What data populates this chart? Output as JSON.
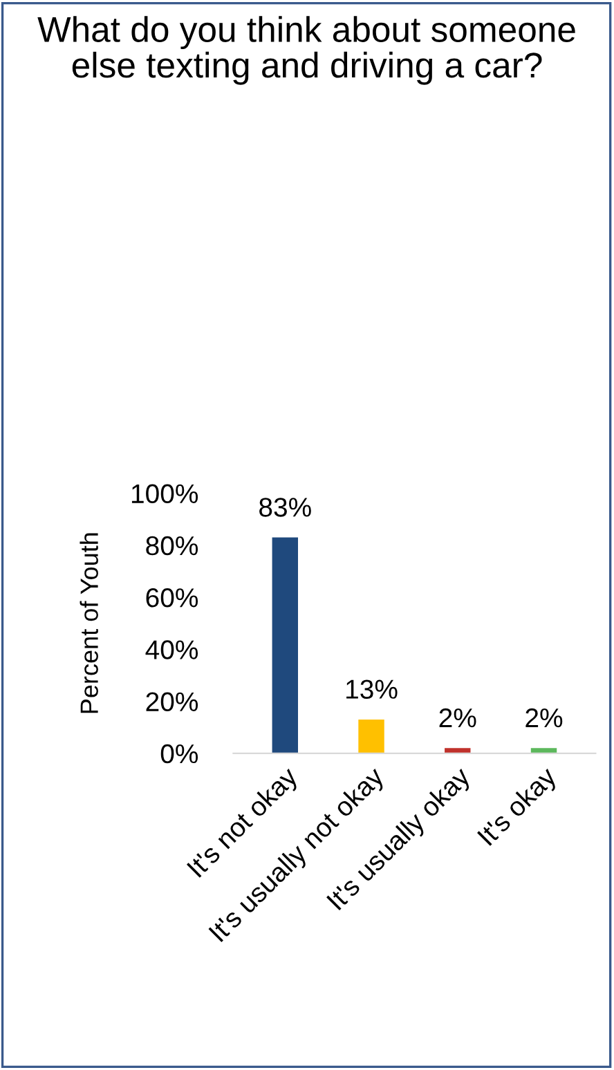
{
  "chart_data": {
    "type": "bar",
    "title": "What do you think about someone else texting and driving a car?",
    "ylabel": "Percent of Youth",
    "categories": [
      "It's not okay",
      "It's usually not okay",
      "It's usually okay",
      "It's okay"
    ],
    "values": [
      83,
      13,
      2,
      2
    ],
    "colors": [
      "#1f497d",
      "#ffc000",
      "#c0312b",
      "#5cb85c"
    ],
    "value_labels": [
      "83%",
      "13%",
      "2%",
      "2%"
    ],
    "ylim": [
      0,
      100
    ],
    "yticks": [
      {
        "value": 0,
        "label": "0%"
      },
      {
        "value": 20,
        "label": "20%"
      },
      {
        "value": 40,
        "label": "40%"
      },
      {
        "value": 60,
        "label": "60%"
      },
      {
        "value": 80,
        "label": "80%"
      },
      {
        "value": 100,
        "label": "100%"
      }
    ],
    "grid": false,
    "legend": false
  }
}
